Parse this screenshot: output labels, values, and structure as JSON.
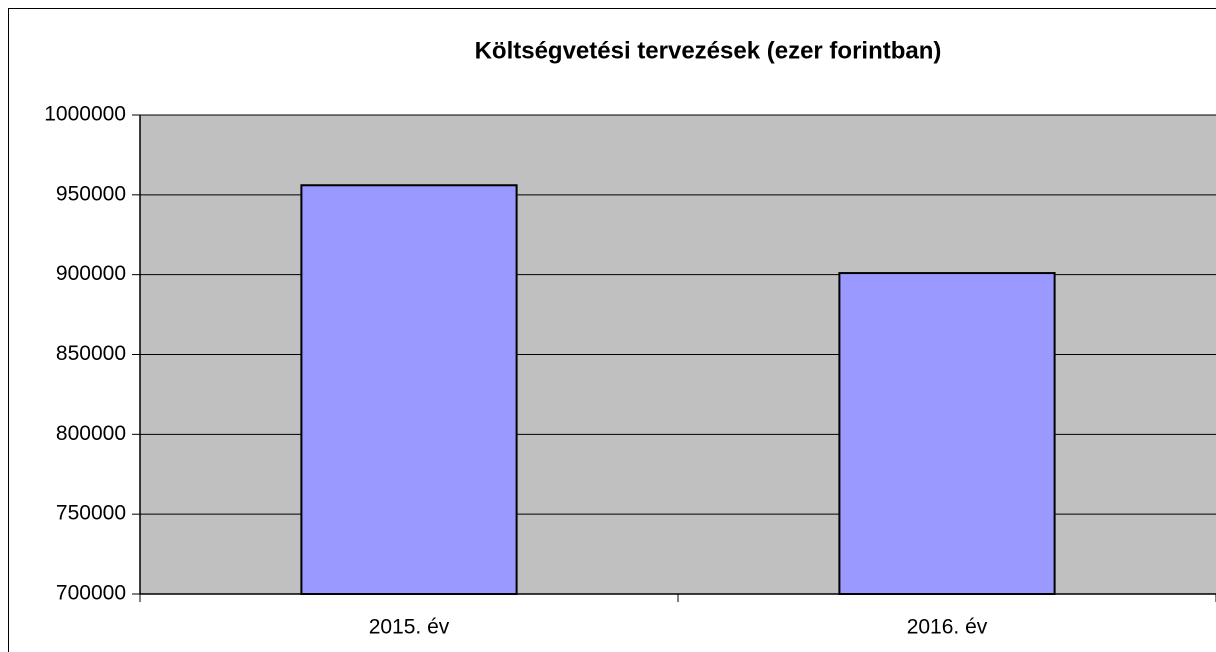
{
  "chart_data": {
    "type": "bar",
    "title": "Költségvetési tervezések (ezer forintban)",
    "categories": [
      "2015. év",
      "2016. év"
    ],
    "values": [
      956000,
      901000
    ],
    "color": "#9999ff",
    "plot_background": "#c0c0c0",
    "ylim": [
      700000,
      1000000
    ],
    "yticks": [
      700000,
      750000,
      800000,
      850000,
      900000,
      950000,
      1000000
    ],
    "grid": true
  }
}
